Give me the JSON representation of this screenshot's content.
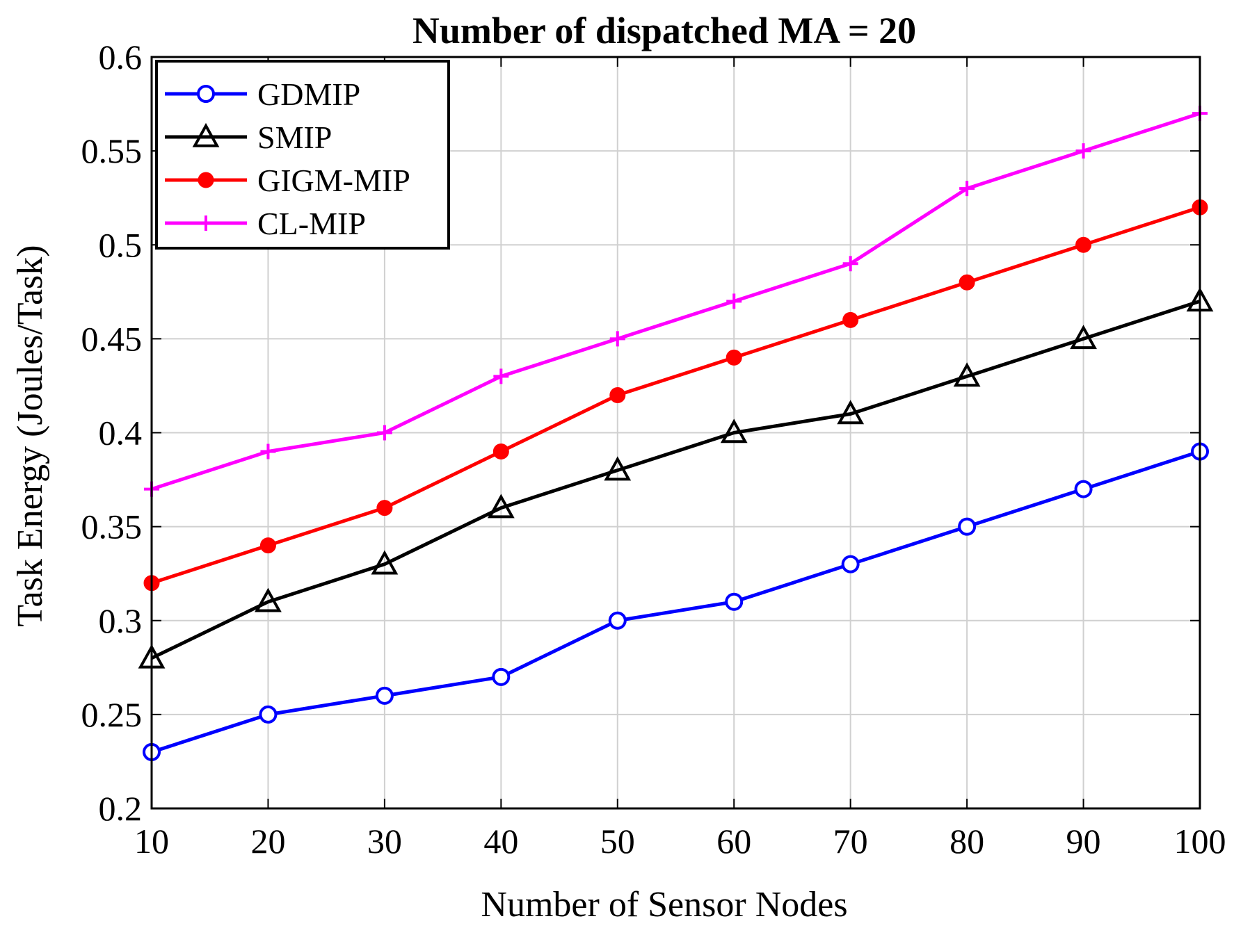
{
  "chart_data": {
    "type": "line",
    "title": "Number of dispatched MA = 20",
    "xlabel": "Number of Sensor Nodes",
    "ylabel": "Task Energy (Joules/Task)",
    "x": [
      10,
      20,
      30,
      40,
      50,
      60,
      70,
      80,
      90,
      100
    ],
    "xlim": [
      10,
      100
    ],
    "ylim": [
      0.2,
      0.6
    ],
    "xticks": [
      10,
      20,
      30,
      40,
      50,
      60,
      70,
      80,
      90,
      100
    ],
    "xtick_labels": [
      "10",
      "20",
      "30",
      "40",
      "50",
      "60",
      "70",
      "80",
      "90",
      "100"
    ],
    "yticks": [
      0.2,
      0.25,
      0.3,
      0.35,
      0.4,
      0.45,
      0.5,
      0.55,
      0.6
    ],
    "ytick_labels": [
      "0.2",
      "0.25",
      "0.3",
      "0.35",
      "0.4",
      "0.45",
      "0.5",
      "0.55",
      "0.6"
    ],
    "grid": true,
    "legend_position": "top-left",
    "series": [
      {
        "name": "GDMIP",
        "color": "#0000ff",
        "marker": "circle",
        "values": [
          0.23,
          0.25,
          0.26,
          0.27,
          0.3,
          0.31,
          0.33,
          0.35,
          0.37,
          0.39
        ]
      },
      {
        "name": "SMIP",
        "color": "#000000",
        "marker": "triangle",
        "values": [
          0.28,
          0.31,
          0.33,
          0.36,
          0.38,
          0.4,
          0.41,
          0.43,
          0.45,
          0.47
        ]
      },
      {
        "name": "GIGM-MIP",
        "color": "#ff0000",
        "marker": "dot",
        "values": [
          0.32,
          0.34,
          0.36,
          0.39,
          0.42,
          0.44,
          0.46,
          0.48,
          0.5,
          0.52
        ]
      },
      {
        "name": "CL-MIP",
        "color": "#ff00ff",
        "marker": "plus",
        "values": [
          0.37,
          0.39,
          0.4,
          0.43,
          0.45,
          0.47,
          0.49,
          0.53,
          0.55,
          0.57
        ]
      }
    ]
  }
}
